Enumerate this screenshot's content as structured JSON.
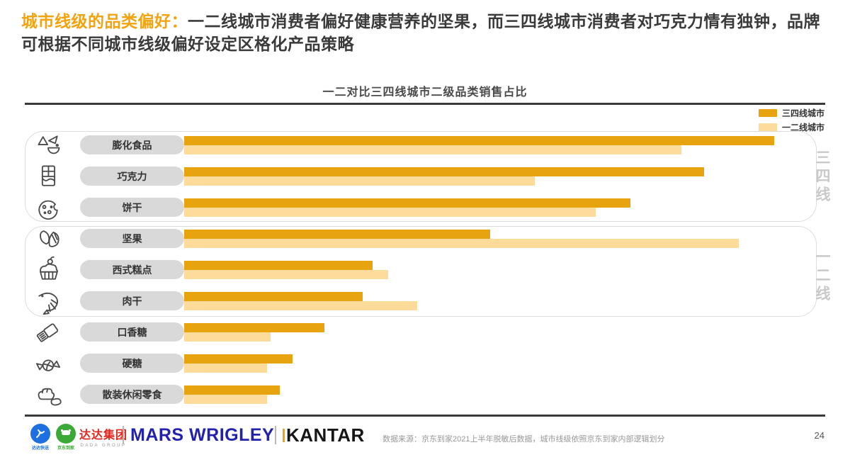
{
  "slide": {
    "title_accent": "城市线级的品类偏好：",
    "title_rest": "一二线城市消费者偏好健康营养的坚果，而三四线城市消费者对巧克力情有独钟，品牌可根据不同城市线级偏好设定区格化产品策略",
    "accent_color": "#F2A30D",
    "page_number": "24"
  },
  "chart_data": {
    "type": "bar",
    "orientation": "horizontal",
    "title": "一二对比三四线城市二级品类销售占比",
    "categories": [
      "膨化食品",
      "巧克力",
      "饼干",
      "坚果",
      "西式糕点",
      "肉干",
      "口香糖",
      "硬糖",
      "散装休闲零食"
    ],
    "series": [
      {
        "name": "三四线城市",
        "color": "#E8A40E",
        "values": [
          92.5,
          81.5,
          70,
          48,
          29.5,
          28,
          22,
          17,
          15
        ]
      },
      {
        "name": "一二线城市",
        "color": "#FDDC9B",
        "values": [
          78,
          55,
          64.5,
          87,
          32,
          36.5,
          13.5,
          13,
          13
        ]
      }
    ],
    "xlim": [
      0,
      100
    ],
    "value_unit": "relative-length-percent-estimated",
    "legend_position": "top-right",
    "grid": false,
    "group_labels": [
      "三四线",
      "一二线"
    ],
    "groups": [
      {
        "label": "三四线",
        "categories": [
          "膨化食品",
          "巧克力",
          "饼干"
        ]
      },
      {
        "label": "一二线",
        "categories": [
          "坚果",
          "西式糕点",
          "肉干"
        ]
      }
    ]
  },
  "footer": {
    "logo_dada_delivery": "达达快送",
    "logo_jd_daojia": "京东到家",
    "logo_dada_group_cn": "达达集团",
    "logo_dada_group_en": "DADA GROUP",
    "logo_mars": "MARS WRIGLEY",
    "logo_kantar": "KANTAR",
    "source": "数据来源：京东到家2021上半年脱敏后数据，城市线级依照京东到家内部逻辑划分"
  }
}
